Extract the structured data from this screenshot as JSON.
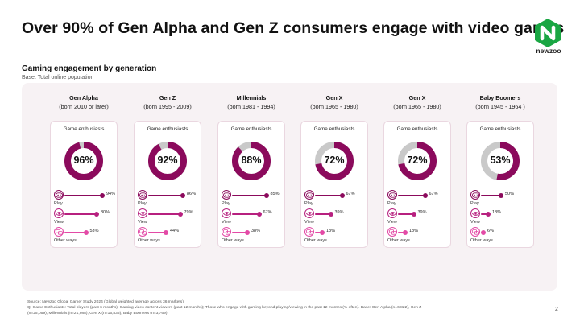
{
  "slide": {
    "title": "Over 90% of Gen Alpha and Gen Z consumers engage with video games",
    "logo_text": "newzoo",
    "subtitle": "Gaming engagement by generation",
    "base": "Base: Total online population",
    "footer_source": "Source: Newzoo Global Gamer Study 2024 (Global weighted average across 36 markets)",
    "footer_q": "Q: Game Enthusiasts: Total players (past 6 months); Gaming video content viewers (past 12 months); Those who engage with gaming beyond playing/viewing in the past 12 months (% often). Base: Gen Alpha (n=6,822), Gen Z",
    "footer_n": "(n=25,059), Millennials (n=21,988), Gen X (n=15,835), Baby Boomers (n=3,769)",
    "page_number": "2"
  },
  "colors": {
    "play": "#8b0a5c",
    "view": "#b7207f",
    "other": "#e34aa6",
    "donut_track": "#c9c9c9",
    "panel_bg": "#f7f2f4",
    "brand_green": "#1aa643"
  },
  "icons": {
    "play": "gamepad-icon",
    "view": "eye-icon",
    "other": "chat-icon"
  },
  "chart_data": {
    "type": "donut",
    "card_title": "Game enthusiasts",
    "metric_labels": [
      "Play",
      "View",
      "Other ways"
    ],
    "generations": [
      {
        "name": "Gen Alpha",
        "born": "(born 2010 or later)",
        "enthusiasts": 96,
        "enthusiasts_label": "96%",
        "play": 94,
        "play_label": "94%",
        "view": 80,
        "view_label": "80%",
        "other": 53,
        "other_label": "53%"
      },
      {
        "name": "Gen Z",
        "born": "(born 1995 - 2009)",
        "enthusiasts": 92,
        "enthusiasts_label": "92%",
        "play": 86,
        "play_label": "86%",
        "view": 79,
        "view_label": "79%",
        "other": 44,
        "other_label": "44%"
      },
      {
        "name": "Millennials",
        "born": "(born 1981 - 1994)",
        "enthusiasts": 88,
        "enthusiasts_label": "88%",
        "play": 85,
        "play_label": "85%",
        "view": 67,
        "view_label": "67%",
        "other": 38,
        "other_label": "38%"
      },
      {
        "name": "Gen X",
        "born": "(born 1965 - 1980)",
        "enthusiasts": 72,
        "enthusiasts_label": "72%",
        "play": 67,
        "play_label": "67%",
        "view": 39,
        "view_label": "39%",
        "other": 18,
        "other_label": "18%"
      },
      {
        "name": "Gen X",
        "born": "(born 1965 - 1980)",
        "enthusiasts": 72,
        "enthusiasts_label": "72%",
        "play": 67,
        "play_label": "67%",
        "view": 39,
        "view_label": "39%",
        "other": 18,
        "other_label": "18%"
      },
      {
        "name": "Baby Boomers",
        "born": "(born 1945 - 1964 )",
        "enthusiasts": 53,
        "enthusiasts_label": "53%",
        "play": 50,
        "play_label": "50%",
        "view": 18,
        "view_label": "18%",
        "other": 6,
        "other_label": "6%"
      }
    ]
  }
}
